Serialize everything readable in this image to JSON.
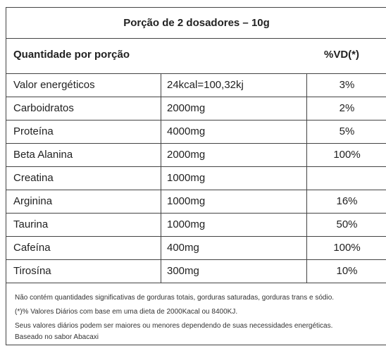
{
  "title": "Porção de 2 dosadores – 10g",
  "header": {
    "quantity": "Quantidade por porção",
    "vd": "%VD(*)"
  },
  "rows": [
    [
      "Valor energéticos",
      "24kcal=100,32kj",
      "3%"
    ],
    [
      "Carboidratos",
      "2000mg",
      "2%"
    ],
    [
      "Proteína",
      "4000mg",
      "5%"
    ],
    [
      "Beta Alanina",
      "2000mg",
      "100%"
    ],
    [
      "Creatina",
      "1000mg",
      null
    ],
    [
      "Arginina",
      "1000mg",
      "16%"
    ],
    [
      "Taurina",
      "1000mg",
      "50%"
    ],
    [
      "Cafeína",
      "400mg",
      "100%"
    ],
    [
      "Tirosína",
      "300mg",
      "10%"
    ]
  ],
  "footnotes": [
    "Não contém quantidades significativas de gorduras totais, gorduras saturadas, gorduras trans e sódio.",
    "(*)% Valores Diários com base em uma dieta de 2000Kacal ou 8400KJ.",
    "Seus valores diários podem ser maiores ou menores dependendo de suas necessidades energéticas.",
    "Baseado no sabor Abacaxi"
  ]
}
